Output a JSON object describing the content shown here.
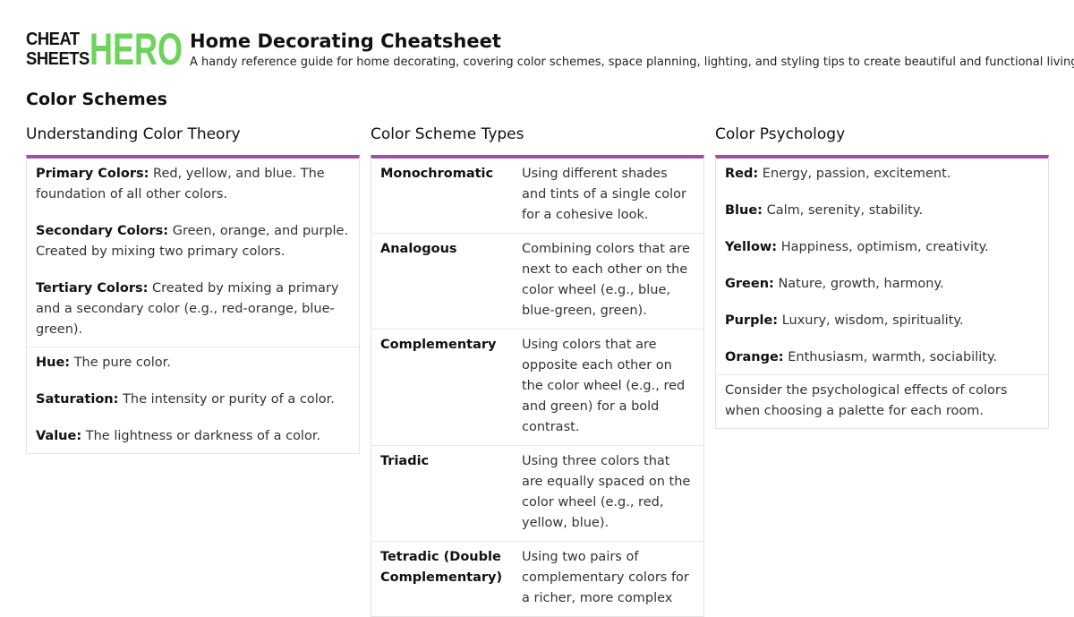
{
  "logo": {
    "line1": "CHEAT",
    "line2": "SHEETS",
    "hero": "HERO",
    "hero_color": "#6dd35a"
  },
  "header": {
    "title": "Home Decorating Cheatsheet",
    "subtitle": "A handy reference guide for home decorating, covering color schemes, space planning, lighting, and styling tips to create beautiful and functional living spaces."
  },
  "section": "Color Schemes",
  "accent": "#a44ea0",
  "theory": {
    "title": "Understanding Color Theory",
    "block1": [
      {
        "term": "Primary Colors:",
        "text": " Red, yellow, and blue. The foundation of all other colors."
      },
      {
        "term": "Secondary Colors:",
        "text": " Green, orange, and purple. Created by mixing two primary colors."
      },
      {
        "term": "Tertiary Colors:",
        "text": " Created by mixing a primary and a secondary color (e.g., red-orange, blue-green)."
      }
    ],
    "block2": [
      {
        "term": "Hue:",
        "text": " The pure color."
      },
      {
        "term": "Saturation:",
        "text": " The intensity or purity of a color."
      },
      {
        "term": "Value:",
        "text": " The lightness or darkness of a color."
      }
    ]
  },
  "types": {
    "title": "Color Scheme Types",
    "rows": [
      {
        "name": "Monochromatic",
        "desc": "Using different shades and tints of a single color for a cohesive look."
      },
      {
        "name": "Analogous",
        "desc": "Combining colors that are next to each other on the color wheel (e.g., blue, blue-green, green)."
      },
      {
        "name": "Complementary",
        "desc": "Using colors that are opposite each other on the color wheel (e.g., red and green) for a bold contrast."
      },
      {
        "name": "Triadic",
        "desc": "Using three colors that are equally spaced on the color wheel (e.g., red, yellow, blue)."
      },
      {
        "name": "Tetradic (Double Complementary)",
        "desc": "Using two pairs of complementary colors for a richer, more complex"
      }
    ]
  },
  "psychology": {
    "title": "Color Psychology",
    "items": [
      {
        "term": "Red:",
        "text": " Energy, passion, excitement."
      },
      {
        "term": "Blue:",
        "text": " Calm, serenity, stability."
      },
      {
        "term": "Yellow:",
        "text": " Happiness, optimism, creativity."
      },
      {
        "term": "Green:",
        "text": " Nature, growth, harmony."
      },
      {
        "term": "Purple:",
        "text": " Luxury, wisdom, spirituality."
      },
      {
        "term": "Orange:",
        "text": " Enthusiasm, warmth, sociability."
      }
    ],
    "note": "Consider the psychological effects of colors when choosing a palette for each room."
  }
}
